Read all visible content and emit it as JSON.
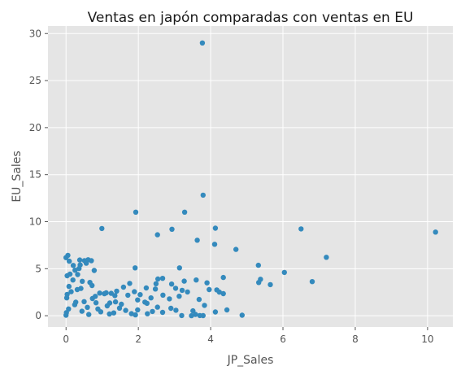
{
  "chart_data": {
    "type": "scatter",
    "title": "Ventas en japón comparadas con ventas en EU",
    "xlabel": "JP_Sales",
    "ylabel": "EU_Sales",
    "xlim": [
      -0.5,
      10.7
    ],
    "ylim": [
      -1.2,
      30.8
    ],
    "xticks": [
      0,
      2,
      4,
      6,
      8,
      10
    ],
    "yticks": [
      0,
      5,
      10,
      15,
      20,
      25,
      30
    ],
    "grid": true,
    "legend": "none",
    "colors": {
      "background": "#e5e5e5",
      "grid": "#ffffff",
      "point": "#348abd"
    },
    "points": [
      [
        3.77,
        29.0
      ],
      [
        10.22,
        8.89
      ],
      [
        3.79,
        12.82
      ],
      [
        1.93,
        11.01
      ],
      [
        3.28,
        11.01
      ],
      [
        6.5,
        9.23
      ],
      [
        2.93,
        9.2
      ],
      [
        4.13,
        9.31
      ],
      [
        0.99,
        9.27
      ],
      [
        2.53,
        8.61
      ],
      [
        3.63,
        8.03
      ],
      [
        4.7,
        7.05
      ],
      [
        4.11,
        7.6
      ],
      [
        7.2,
        6.21
      ],
      [
        6.04,
        4.6
      ],
      [
        5.32,
        5.36
      ],
      [
        3.14,
        5.09
      ],
      [
        6.81,
        3.63
      ],
      [
        5.65,
        3.31
      ],
      [
        5.38,
        3.88
      ],
      [
        5.33,
        3.53
      ],
      [
        4.35,
        4.07
      ],
      [
        4.35,
        2.35
      ],
      [
        3.96,
        2.78
      ],
      [
        4.17,
        2.74
      ],
      [
        4.24,
        2.51
      ],
      [
        3.6,
        3.8
      ],
      [
        3.9,
        3.5
      ],
      [
        3.27,
        3.68
      ],
      [
        2.92,
        3.37
      ],
      [
        2.54,
        3.9
      ],
      [
        2.67,
        3.97
      ],
      [
        2.49,
        3.4
      ],
      [
        2.47,
        2.84
      ],
      [
        2.22,
        2.95
      ],
      [
        3.03,
        2.92
      ],
      [
        3.21,
        2.7
      ],
      [
        3.36,
        2.53
      ],
      [
        3.13,
        2.07
      ],
      [
        2.86,
        1.79
      ],
      [
        2.68,
        2.19
      ],
      [
        2.9,
        0.79
      ],
      [
        3.04,
        0.58
      ],
      [
        3.2,
        0.02
      ],
      [
        3.7,
        0.02
      ],
      [
        4.13,
        0.4
      ],
      [
        4.45,
        0.62
      ],
      [
        4.87,
        0.05
      ],
      [
        3.47,
        0.0
      ],
      [
        3.68,
        1.73
      ],
      [
        3.83,
        1.1
      ],
      [
        3.51,
        0.52
      ],
      [
        3.58,
        0.14
      ],
      [
        3.79,
        0.01
      ],
      [
        2.67,
        0.36
      ],
      [
        2.24,
        1.32
      ],
      [
        1.98,
        1.68
      ],
      [
        1.76,
        3.44
      ],
      [
        1.91,
        5.09
      ],
      [
        1.89,
        2.55
      ],
      [
        2.05,
        2.24
      ],
      [
        2.35,
        1.9
      ],
      [
        2.18,
        1.45
      ],
      [
        1.98,
        0.62
      ],
      [
        2.25,
        0.21
      ],
      [
        2.39,
        0.45
      ],
      [
        2.53,
        0.91
      ],
      [
        1.71,
        2.18
      ],
      [
        1.59,
        3.04
      ],
      [
        1.35,
        2.14
      ],
      [
        1.25,
        2.38
      ],
      [
        1.21,
        1.35
      ],
      [
        1.4,
        2.61
      ],
      [
        1.11,
        2.43
      ],
      [
        1.06,
        2.34
      ],
      [
        0.93,
        2.41
      ],
      [
        0.81,
        2.06
      ],
      [
        0.73,
        1.83
      ],
      [
        0.66,
        3.54
      ],
      [
        0.56,
        5.58
      ],
      [
        0.51,
        5.86
      ],
      [
        0.38,
        5.93
      ],
      [
        0.61,
        5.95
      ],
      [
        0.7,
        5.85
      ],
      [
        0.39,
        5.4
      ],
      [
        0.2,
        5.35
      ],
      [
        0.05,
        6.42
      ],
      [
        0.0,
        6.18
      ],
      [
        0.09,
        5.8
      ],
      [
        0.25,
        4.84
      ],
      [
        0.36,
        5.02
      ],
      [
        0.32,
        4.38
      ],
      [
        0.11,
        4.42
      ],
      [
        0.03,
        4.25
      ],
      [
        0.19,
        3.8
      ],
      [
        0.45,
        3.66
      ],
      [
        0.72,
        3.21
      ],
      [
        0.41,
        2.9
      ],
      [
        0.08,
        3.12
      ],
      [
        0.31,
        2.78
      ],
      [
        0.78,
        4.81
      ],
      [
        0.03,
        2.27
      ],
      [
        1.37,
        1.47
      ],
      [
        1.53,
        1.22
      ],
      [
        0.5,
        1.5
      ],
      [
        0.83,
        1.38
      ],
      [
        1.14,
        1.05
      ],
      [
        0.59,
        0.89
      ],
      [
        0.24,
        1.17
      ],
      [
        0.07,
        0.72
      ],
      [
        0.44,
        0.48
      ],
      [
        0.96,
        0.42
      ],
      [
        1.32,
        0.3
      ],
      [
        1.65,
        0.56
      ],
      [
        1.48,
        0.81
      ],
      [
        1.81,
        0.22
      ],
      [
        1.92,
        0.09
      ],
      [
        0.0,
        0.05
      ],
      [
        0.01,
        0.33
      ],
      [
        0.02,
        1.9
      ],
      [
        0.14,
        2.55
      ],
      [
        0.27,
        1.44
      ],
      [
        0.63,
        0.13
      ],
      [
        0.88,
        0.72
      ],
      [
        1.2,
        0.18
      ]
    ]
  }
}
